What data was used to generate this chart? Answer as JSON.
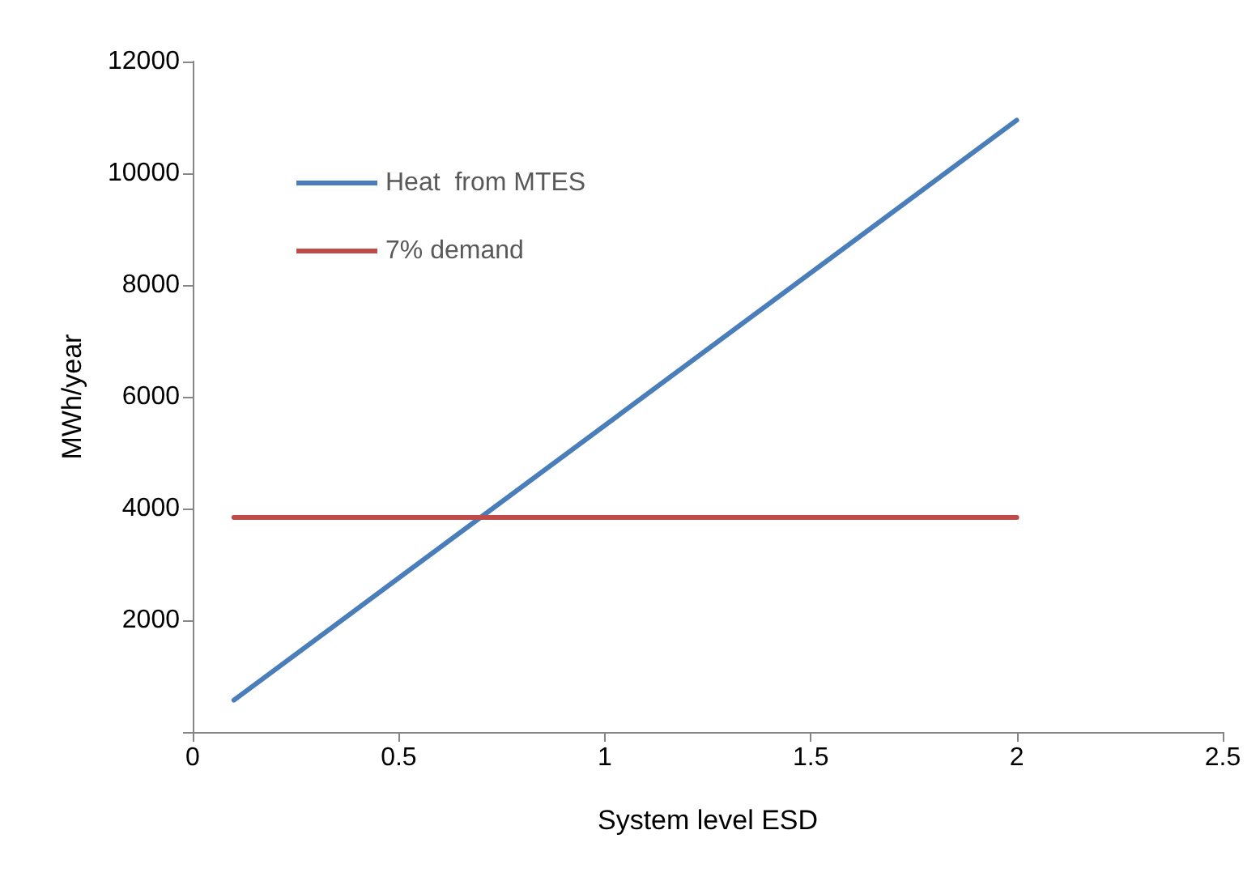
{
  "chart_data": {
    "type": "line",
    "xlabel": "System level ESD",
    "ylabel": "MWh/year",
    "x": [
      0.1,
      2
    ],
    "series": [
      {
        "name": "Heat  from MTES",
        "color": "#4a7ebb",
        "values": [
          570,
          10950
        ]
      },
      {
        "name": "7% demand",
        "color": "#be4b48",
        "values": [
          3840,
          3840
        ]
      }
    ],
    "xlim": [
      0,
      2.5
    ],
    "xticks": [
      0,
      0.5,
      1,
      1.5,
      2,
      2.5
    ],
    "ylim": [
      0,
      12000
    ],
    "yticks": [
      {
        "value": 0,
        "label": null
      },
      2000,
      4000,
      6000,
      8000,
      10000,
      12000
    ],
    "grid": false,
    "legend": "top left",
    "marker": "none",
    "line_style": "solid"
  }
}
